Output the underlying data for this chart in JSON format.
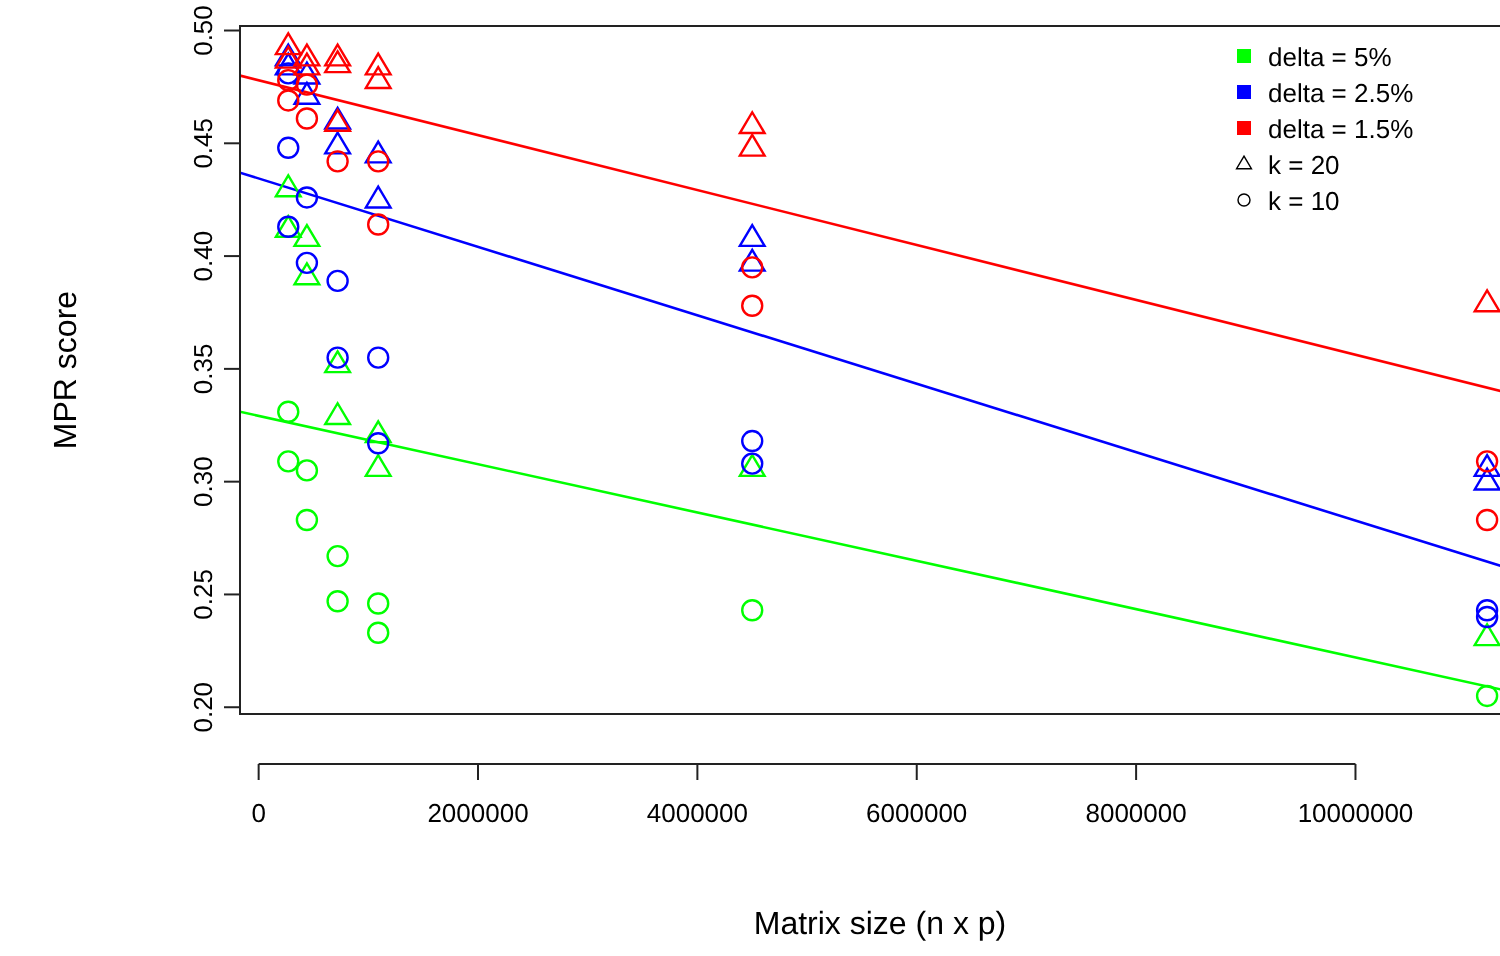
{
  "chart_data": {
    "type": "scatter",
    "xlabel": "Matrix size (n x p)",
    "ylabel": "MPR score",
    "xlim": [
      -170000,
      11500000
    ],
    "ylim": [
      0.197,
      0.502
    ],
    "xticks": [
      0,
      2000000,
      4000000,
      6000000,
      8000000,
      10000000
    ],
    "yticks": [
      {
        "value": 0.2,
        "label": "0.20"
      },
      {
        "value": 0.25,
        "label": "0.25"
      },
      {
        "value": 0.3,
        "label": "0.30"
      },
      {
        "value": 0.35,
        "label": "0.35"
      },
      {
        "value": 0.4,
        "label": "0.40"
      },
      {
        "value": 0.45,
        "label": "0.45"
      },
      {
        "value": 0.5,
        "label": "0.50"
      }
    ],
    "grid": false,
    "legend": "top right",
    "annotations": [
      "k = 20",
      "k = 10"
    ],
    "series": [
      {
        "type": "line",
        "name": "delta = 5%",
        "color": "#00ff00",
        "x": [
          -170000,
          11500000
        ],
        "values": [
          0.331,
          0.206
        ],
        "marker": "none"
      },
      {
        "type": "line",
        "name": "delta = 2.5%",
        "color": "#0000ff",
        "x": [
          -170000,
          11500000
        ],
        "values": [
          0.437,
          0.26
        ],
        "marker": "none"
      },
      {
        "type": "line",
        "name": "delta = 1.5%",
        "color": "#ff0000",
        "x": [
          -170000,
          11500000
        ],
        "values": [
          0.48,
          0.338
        ],
        "marker": "none"
      },
      {
        "color": "#00ff00",
        "marker": "triangle",
        "x": [
          270000,
          270000,
          440000,
          440000,
          720000,
          720000,
          1090000,
          1090000,
          4500000,
          11200000
        ],
        "values": [
          0.43,
          0.412,
          0.408,
          0.391,
          0.352,
          0.329,
          0.321,
          0.306,
          0.306,
          0.231
        ]
      },
      {
        "color": "#00ff00",
        "marker": "circle",
        "x": [
          270000,
          270000,
          440000,
          440000,
          720000,
          720000,
          1090000,
          1090000,
          4500000,
          11200000
        ],
        "values": [
          0.331,
          0.309,
          0.305,
          0.283,
          0.267,
          0.247,
          0.246,
          0.233,
          0.243,
          0.205
        ]
      },
      {
        "color": "#0000ff",
        "marker": "triangle",
        "x": [
          270000,
          270000,
          440000,
          440000,
          720000,
          720000,
          1090000,
          1090000,
          4500000,
          4500000,
          11200000,
          11200000
        ],
        "values": [
          0.488,
          0.484,
          0.48,
          0.471,
          0.46,
          0.449,
          0.445,
          0.425,
          0.408,
          0.397,
          0.306,
          0.3
        ]
      },
      {
        "color": "#0000ff",
        "marker": "circle",
        "x": [
          270000,
          270000,
          270000,
          440000,
          440000,
          720000,
          720000,
          1090000,
          1090000,
          4500000,
          4500000,
          11200000,
          11200000
        ],
        "values": [
          0.481,
          0.448,
          0.413,
          0.426,
          0.397,
          0.389,
          0.355,
          0.355,
          0.317,
          0.318,
          0.308,
          0.243,
          0.24
        ]
      },
      {
        "color": "#ff0000",
        "marker": "triangle",
        "x": [
          270000,
          270000,
          440000,
          440000,
          720000,
          720000,
          720000,
          1090000,
          1090000,
          4500000,
          4500000,
          11200000
        ],
        "values": [
          0.493,
          0.487,
          0.488,
          0.484,
          0.488,
          0.485,
          0.459,
          0.484,
          0.478,
          0.458,
          0.448,
          0.379
        ]
      },
      {
        "color": "#ff0000",
        "marker": "circle",
        "x": [
          270000,
          270000,
          440000,
          440000,
          720000,
          1090000,
          1090000,
          4500000,
          4500000,
          11200000,
          11200000
        ],
        "values": [
          0.478,
          0.469,
          0.476,
          0.461,
          0.442,
          0.442,
          0.414,
          0.395,
          0.378,
          0.309,
          0.283
        ]
      }
    ]
  }
}
